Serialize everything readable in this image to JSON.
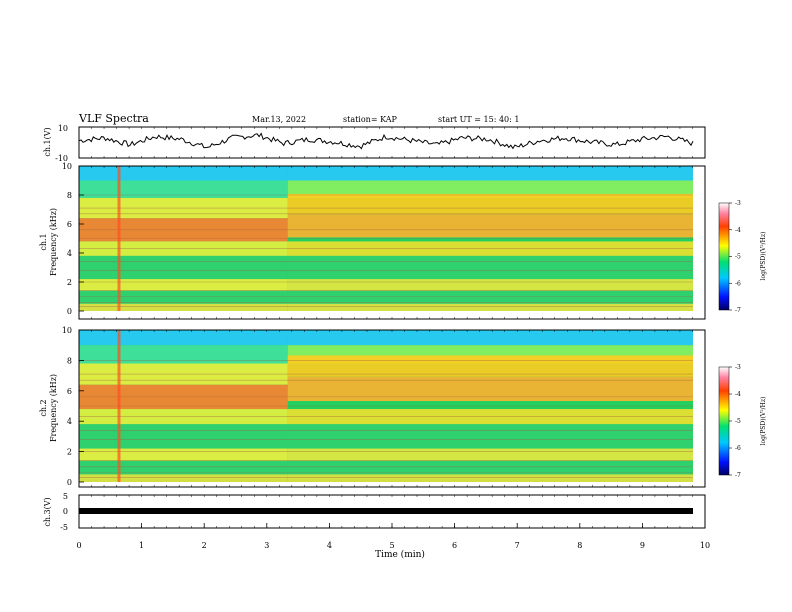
{
  "header": {
    "title": "VLF Spectra",
    "date": "Mar.13, 2022",
    "station": "station= KAP",
    "start": "start UT = 15: 40: 1"
  },
  "colorbar": {
    "label": "log(PSD)(V²/Hz)",
    "ticks": [
      "-3",
      "-4",
      "-5",
      "-6",
      "-7"
    ],
    "range": [
      -7,
      -3
    ]
  },
  "chart_data": [
    {
      "type": "line",
      "title": "",
      "ylabel": "ch.1(V)",
      "ylim": [
        -10,
        10
      ],
      "yticks": [
        "10",
        "-10"
      ],
      "xlim": [
        0,
        10
      ],
      "description_series": "noisy waveform oscillating roughly between -10 and 10 V",
      "series": [
        {
          "values": [
            1,
            3,
            -2,
            4,
            2,
            -4,
            3,
            5,
            -1,
            2,
            0,
            -3,
            4,
            1,
            -2,
            3,
            2,
            -4,
            1,
            3,
            0,
            -2,
            2,
            4,
            -1
          ]
        }
      ]
    },
    {
      "type": "heatmap",
      "ylabel": "ch.1\nFrequency (kHz)",
      "xlim": [
        0,
        10
      ],
      "ylim": [
        0,
        10
      ],
      "yticks": [
        "0",
        "2",
        "4",
        "6",
        "8",
        "10"
      ]
    },
    {
      "type": "heatmap",
      "ylabel": "ch.2\nFrequency (kHz)",
      "xlim": [
        0,
        10
      ],
      "ylim": [
        0,
        10
      ],
      "yticks": [
        "0",
        "2",
        "4",
        "6",
        "8",
        "10"
      ]
    },
    {
      "type": "line",
      "ylabel": "ch.3(V)",
      "xlabel": "Time (min)",
      "xlim": [
        0,
        10
      ],
      "ylim": [
        -5,
        5
      ],
      "yticks": [
        "5",
        "0",
        "-5"
      ],
      "xticks": [
        "0",
        "1",
        "2",
        "3",
        "4",
        "5",
        "6",
        "7",
        "8",
        "9",
        "10"
      ],
      "series": [
        {
          "values": [
            -0.2,
            -0.2
          ]
        }
      ]
    }
  ]
}
